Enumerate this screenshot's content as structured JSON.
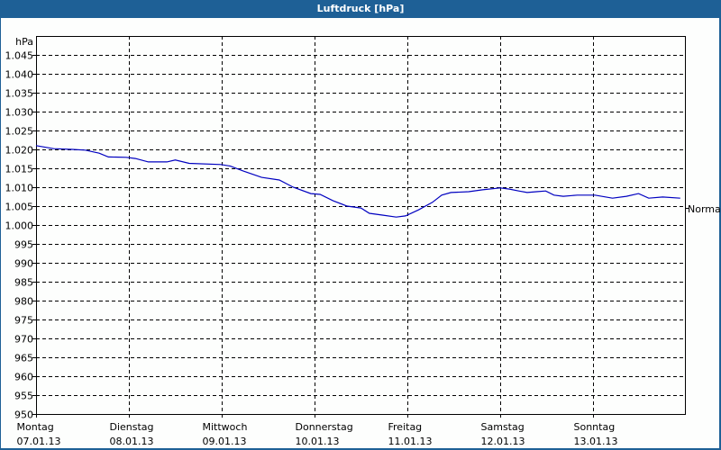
{
  "window": {
    "title": "Luftdruck [hPa]"
  },
  "chart_data": {
    "type": "line",
    "title": "Luftdruck [hPa]",
    "ylabel": "hPa",
    "xlabel": "",
    "ylim": [
      950,
      1050
    ],
    "yticks": [
      "950",
      "955",
      "960",
      "965",
      "970",
      "975",
      "980",
      "985",
      "990",
      "995",
      "1.000",
      "1.005",
      "1.010",
      "1.015",
      "1.020",
      "1.025",
      "1.030",
      "1.035",
      "1.040",
      "1.045"
    ],
    "categories": [
      {
        "day": "Montag",
        "date": "07.01.13"
      },
      {
        "day": "Dienstag",
        "date": "08.01.13"
      },
      {
        "day": "Mittwoch",
        "date": "09.01.13"
      },
      {
        "day": "Donnerstag",
        "date": "10.01.13"
      },
      {
        "day": "Freitag",
        "date": "11.01.13"
      },
      {
        "day": "Samstag",
        "date": "12.01.13"
      },
      {
        "day": "Sonntag",
        "date": "13.01.13"
      }
    ],
    "grid": true,
    "reference_line": {
      "label": "Normal",
      "value": 1013
    },
    "line_color": "#0000c0",
    "series": [
      {
        "name": "Luftdruck",
        "x_days": [
          0,
          0.19,
          0.39,
          0.53,
          0.68,
          0.78,
          0.97,
          1.07,
          1.21,
          1.41,
          1.5,
          1.65,
          1.99,
          2.09,
          2.23,
          2.43,
          2.62,
          2.77,
          2.96,
          3.06,
          3.2,
          3.35,
          3.5,
          3.59,
          3.74,
          3.88,
          3.98,
          4.12,
          4.27,
          4.37,
          4.47,
          4.66,
          4.81,
          5.0,
          5.1,
          5.2,
          5.29,
          5.39,
          5.49,
          5.58,
          5.68,
          5.83,
          6.02,
          6.21,
          6.36,
          6.49,
          6.6,
          6.75,
          6.94
        ],
        "values": [
          1021,
          1020.2,
          1020,
          1019.8,
          1019,
          1018,
          1017.9,
          1017.6,
          1016.7,
          1016.7,
          1017.2,
          1016.3,
          1016,
          1015.6,
          1014.3,
          1012.6,
          1011.9,
          1010,
          1008.3,
          1008.1,
          1006.4,
          1005,
          1004.5,
          1003.1,
          1002.6,
          1002.1,
          1002.4,
          1004,
          1006,
          1007.9,
          1008.6,
          1008.8,
          1009.3,
          1009.8,
          1009.5,
          1009,
          1008.6,
          1008.8,
          1009,
          1007.9,
          1007.6,
          1007.9,
          1007.9,
          1007.1,
          1007.6,
          1008.3,
          1007.1,
          1007.4,
          1007.1
        ]
      }
    ]
  }
}
